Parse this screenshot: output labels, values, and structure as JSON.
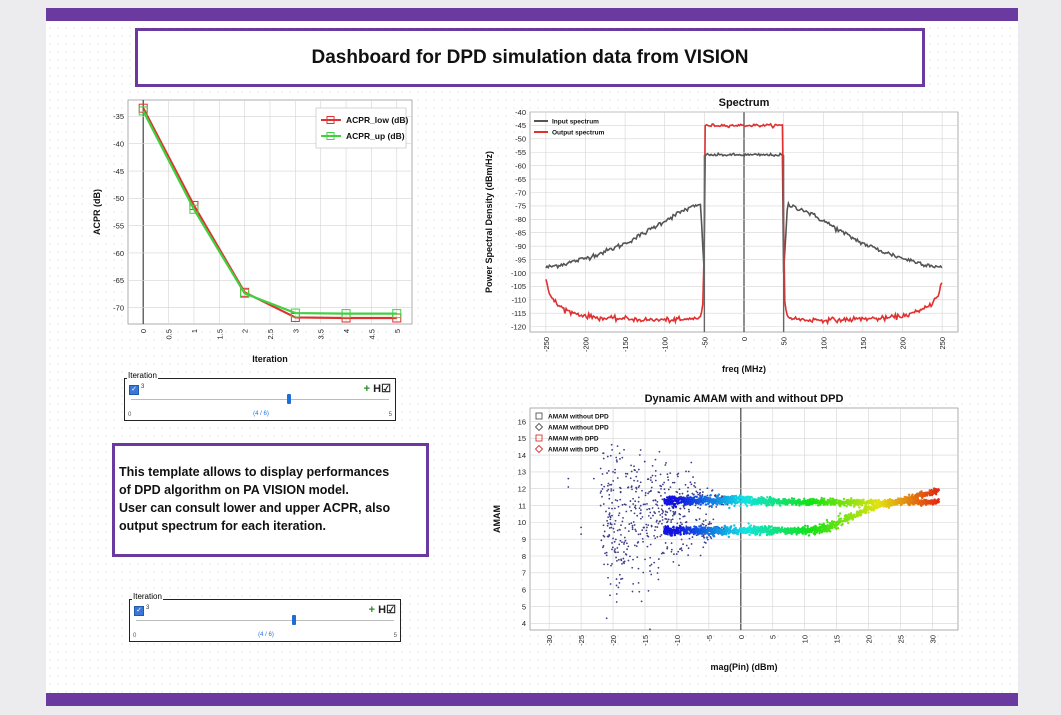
{
  "title": "Dashboard for DPD simulation data from VISION",
  "description": [
    "This template allows to display performances",
    "of DPD algorithm on PA VISION model.",
    "User can consult lower and upper ACPR, also",
    "output spectrum for each iteration."
  ],
  "sliders": [
    {
      "label": "Iteration",
      "checkbox_value": "3",
      "min": "0",
      "max": "5",
      "position": "(4 / 6)",
      "fraction": 0.6
    },
    {
      "label": "Iteration",
      "checkbox_value": "3",
      "min": "0",
      "max": "5",
      "position": "(4 / 6)",
      "fraction": 0.6
    }
  ],
  "slider_tools": [
    "+",
    "H",
    "☑"
  ],
  "colors": {
    "accent": "#6a3aa0",
    "acpr_low": "#e03030",
    "acpr_up": "#40d040",
    "input_spectrum": "#555555",
    "output_spectrum": "#e03030"
  },
  "chart_data": [
    {
      "type": "line",
      "title": "",
      "xlabel": "Iteration",
      "ylabel": "ACPR (dB)",
      "xlim": [
        -0.3,
        5.3
      ],
      "ylim": [
        -73,
        -32
      ],
      "xticks": [
        "0",
        "0.5",
        "1",
        "1.5",
        "2",
        "2.5",
        "3",
        "3.5",
        "4",
        "4.5",
        "5"
      ],
      "yticks": [
        "-35",
        "-40",
        "-45",
        "-50",
        "-55",
        "-60",
        "-65",
        "-70"
      ],
      "x": [
        0,
        1,
        2,
        3,
        4,
        5
      ],
      "series": [
        {
          "name": "ACPR_low (dB)",
          "values": [
            -33.5,
            -51.3,
            -67.2,
            -71.8,
            -71.9,
            -71.9
          ]
        },
        {
          "name": "ACPR_up (dB)",
          "values": [
            -34.0,
            -52.0,
            -67.4,
            -71.0,
            -71.1,
            -71.1
          ]
        }
      ],
      "legend": "top-right",
      "grid": true
    },
    {
      "type": "line",
      "title": "Spectrum",
      "xlabel": "freq (MHz)",
      "ylabel": "Power Spectral Density (dBm/Hz)",
      "xlim": [
        -270,
        270
      ],
      "ylim": [
        -122,
        -40
      ],
      "xticks": [
        "-250",
        "-200",
        "-150",
        "-100",
        "-50",
        "0",
        "50",
        "100",
        "150",
        "200",
        "250"
      ],
      "yticks": [
        "-40",
        "-45",
        "-50",
        "-55",
        "-60",
        "-65",
        "-70",
        "-75",
        "-80",
        "-85",
        "-90",
        "-95",
        "-100",
        "-105",
        "-110",
        "-115",
        "-120"
      ],
      "series": [
        {
          "name": "Input spectrum",
          "x": [
            -250,
            -225,
            -200,
            -175,
            -150,
            -125,
            -100,
            -75,
            -55,
            -50,
            -49,
            -25,
            0,
            25,
            49,
            50,
            55,
            75,
            100,
            125,
            150,
            175,
            200,
            225,
            250
          ],
          "values": [
            -98,
            -96.5,
            -94.5,
            -92,
            -89,
            -85,
            -80.5,
            -76.5,
            -74.5,
            -100,
            -56,
            -56,
            -56,
            -56,
            -56,
            -100,
            -74.5,
            -76.5,
            -80.5,
            -85,
            -89,
            -92,
            -94.5,
            -96.5,
            -98
          ]
        },
        {
          "name": "Output spectrum",
          "x": [
            -250,
            -245,
            -235,
            -220,
            -200,
            -175,
            -150,
            -125,
            -100,
            -75,
            -55,
            -51,
            -50,
            -49,
            -25,
            0,
            25,
            49,
            50,
            51,
            55,
            75,
            100,
            125,
            150,
            175,
            200,
            220,
            235,
            245,
            250
          ],
          "values": [
            -103,
            -108,
            -112,
            -114.5,
            -116,
            -117,
            -117,
            -117.5,
            -117.5,
            -117.5,
            -116.5,
            -110,
            -80,
            -45,
            -45,
            -45,
            -45,
            -45,
            -80,
            -110,
            -116.5,
            -117.5,
            -117.5,
            -117.5,
            -117,
            -117,
            -116,
            -114.5,
            -112,
            -108,
            -103
          ]
        }
      ],
      "legend": "top-left",
      "grid": true
    },
    {
      "type": "scatter",
      "title": "Dynamic AMAM with and without DPD",
      "xlabel": "mag(Pin) (dBm)",
      "ylabel": "AMAM",
      "xlim": [
        -33,
        34
      ],
      "ylim": [
        3.6,
        16.8
      ],
      "xticks": [
        "-30",
        "-25",
        "-20",
        "-15",
        "-10",
        "-5",
        "0",
        "5",
        "10",
        "15",
        "20",
        "25",
        "30"
      ],
      "yticks": [
        "4",
        "5",
        "6",
        "7",
        "8",
        "9",
        "10",
        "11",
        "12",
        "13",
        "14",
        "15",
        "16"
      ],
      "series": [
        {
          "name": "AMAM without DPD",
          "marker": "square"
        },
        {
          "name": "AMAM without DPD",
          "marker": "diamond"
        },
        {
          "name": "AMAM with DPD",
          "marker": "square"
        },
        {
          "name": "AMAM with DPD",
          "marker": "diamond"
        }
      ],
      "upper_branch": {
        "x": [
          -20,
          -10,
          0,
          10,
          15,
          20,
          25,
          31
        ],
        "y": [
          11.3,
          11.3,
          11.3,
          11.2,
          11.2,
          11.2,
          11.2,
          11.2
        ]
      },
      "lower_branch": {
        "x": [
          -20,
          -10,
          0,
          10,
          13,
          20,
          25,
          31
        ],
        "y": [
          9.6,
          9.5,
          9.5,
          9.5,
          9.6,
          10.8,
          11.3,
          11.9
        ]
      },
      "legend": "top-left",
      "grid": true
    }
  ]
}
